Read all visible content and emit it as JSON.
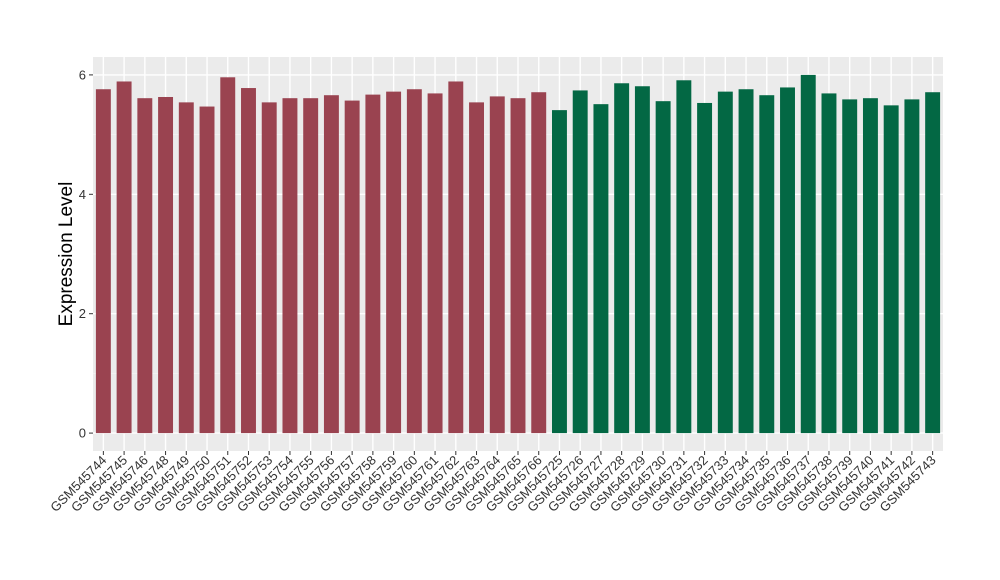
{
  "chart_data": {
    "type": "bar",
    "xlabel": "",
    "ylabel": "Expression Level",
    "ylim": [
      -0.3,
      6.3
    ],
    "yticks": [
      0,
      2,
      4,
      6
    ],
    "grid": true,
    "background": "#ebebeb",
    "categories": [
      "GSM545744",
      "GSM545745",
      "GSM545746",
      "GSM545748",
      "GSM545749",
      "GSM545750",
      "GSM545751",
      "GSM545752",
      "GSM545753",
      "GSM545754",
      "GSM545755",
      "GSM545756",
      "GSM545757",
      "GSM545758",
      "GSM545759",
      "GSM545760",
      "GSM545761",
      "GSM545762",
      "GSM545763",
      "GSM545764",
      "GSM545765",
      "GSM545766",
      "GSM545725",
      "GSM545726",
      "GSM545727",
      "GSM545728",
      "GSM545729",
      "GSM545730",
      "GSM545731",
      "GSM545732",
      "GSM545733",
      "GSM545734",
      "GSM545735",
      "GSM545736",
      "GSM545737",
      "GSM545738",
      "GSM545739",
      "GSM545740",
      "GSM545741",
      "GSM545742",
      "GSM545743"
    ],
    "values": [
      5.76,
      5.89,
      5.61,
      5.63,
      5.54,
      5.47,
      5.96,
      5.78,
      5.54,
      5.61,
      5.61,
      5.66,
      5.57,
      5.67,
      5.72,
      5.76,
      5.69,
      5.89,
      5.54,
      5.64,
      5.61,
      5.71,
      5.41,
      5.74,
      5.51,
      5.86,
      5.81,
      5.56,
      5.91,
      5.53,
      5.72,
      5.76,
      5.66,
      5.79,
      6.0,
      5.69,
      5.59,
      5.61,
      5.49,
      5.59,
      5.71
    ],
    "groups": [
      {
        "color": "#9a4350",
        "count": 22
      },
      {
        "color": "#036844",
        "count": 19
      }
    ]
  }
}
